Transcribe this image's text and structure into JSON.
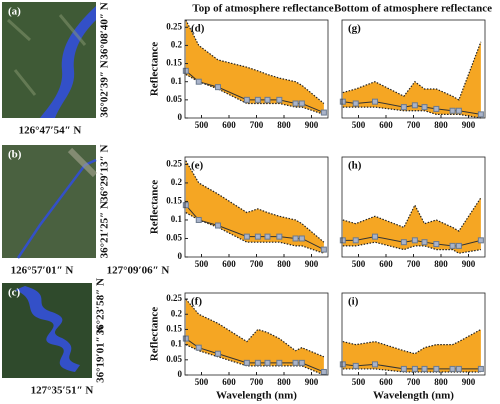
{
  "columns": [
    "Top of atmosphere reflectance",
    "Bottom of atmosphere reflectance"
  ],
  "images": [
    {
      "label": "(a)",
      "right": [
        "36°08′40″ N",
        "36°02′39″ N"
      ],
      "bottom": [
        "126°47′54″ N"
      ]
    },
    {
      "label": "(b)",
      "right": [
        "36°29′13″ N",
        "36°21′25″ N"
      ],
      "bottom": [
        "126°57′01″ N",
        "127°09′06″ N"
      ]
    },
    {
      "label": "(c)",
      "right": [
        "36°23′58″ N",
        "36°19′01″ N"
      ],
      "bottom": [
        "127°35′51″ N"
      ]
    }
  ],
  "chart_data": [
    {
      "type": "range",
      "label": "(d)",
      "ylabel": "Reflectance",
      "x": [
        443,
        490,
        560,
        665,
        705,
        740,
        783,
        842,
        865,
        945
      ],
      "upper": [
        0.27,
        0.2,
        0.16,
        0.14,
        0.13,
        0.12,
        0.11,
        0.1,
        0.09,
        0.04
      ],
      "lower": [
        0.12,
        0.1,
        0.08,
        0.04,
        0.04,
        0.04,
        0.04,
        0.03,
        0.03,
        0.01
      ],
      "values": [
        0.13,
        0.1,
        0.085,
        0.05,
        0.05,
        0.05,
        0.05,
        0.04,
        0.04,
        0.015
      ],
      "fill_color": "#f5a623",
      "color": "#6b7a8f",
      "xlim": [
        440,
        960
      ],
      "xticks": [
        500,
        600,
        700,
        800,
        900
      ],
      "ylim": [
        0,
        0.27
      ],
      "yticks": [
        0,
        0.05,
        0.1,
        0.15,
        0.2,
        0.25
      ]
    },
    {
      "type": "range",
      "label": "(g)",
      "x": [
        443,
        490,
        560,
        665,
        705,
        740,
        783,
        842,
        865,
        945
      ],
      "upper": [
        0.07,
        0.08,
        0.1,
        0.06,
        0.1,
        0.08,
        0.08,
        0.06,
        0.05,
        0.21
      ],
      "lower": [
        0.03,
        0.03,
        0.03,
        0.02,
        0.02,
        0.02,
        0.01,
        0.01,
        0.01,
        0.0
      ],
      "values": [
        0.045,
        0.04,
        0.045,
        0.03,
        0.035,
        0.03,
        0.025,
        0.02,
        0.02,
        0.01
      ],
      "fill_color": "#f5a623",
      "color": "#6b7a8f",
      "xlim": [
        440,
        960
      ],
      "xticks": [
        500,
        600,
        700,
        800,
        900
      ],
      "ylim": [
        0,
        0.27
      ]
    },
    {
      "type": "range",
      "label": "(e)",
      "ylabel": "Reflectance",
      "x": [
        443,
        490,
        560,
        665,
        705,
        740,
        783,
        842,
        865,
        945
      ],
      "upper": [
        0.26,
        0.2,
        0.17,
        0.12,
        0.13,
        0.12,
        0.11,
        0.1,
        0.09,
        0.04
      ],
      "lower": [
        0.12,
        0.1,
        0.08,
        0.04,
        0.04,
        0.04,
        0.04,
        0.03,
        0.03,
        0.01
      ],
      "values": [
        0.14,
        0.1,
        0.085,
        0.055,
        0.055,
        0.055,
        0.055,
        0.05,
        0.05,
        0.02
      ],
      "fill_color": "#f5a623",
      "color": "#6b7a8f",
      "xlim": [
        440,
        960
      ],
      "xticks": [
        500,
        600,
        700,
        800,
        900
      ],
      "ylim": [
        0,
        0.27
      ],
      "yticks": [
        0,
        0.05,
        0.1,
        0.15,
        0.2,
        0.25
      ]
    },
    {
      "type": "range",
      "label": "(h)",
      "x": [
        443,
        490,
        560,
        665,
        705,
        740,
        783,
        842,
        865,
        945
      ],
      "upper": [
        0.1,
        0.09,
        0.11,
        0.08,
        0.14,
        0.09,
        0.1,
        0.08,
        0.07,
        0.16
      ],
      "lower": [
        0.03,
        0.03,
        0.04,
        0.02,
        0.03,
        0.03,
        0.02,
        0.02,
        0.01,
        0.02
      ],
      "values": [
        0.045,
        0.045,
        0.055,
        0.04,
        0.045,
        0.04,
        0.035,
        0.03,
        0.03,
        0.045
      ],
      "fill_color": "#f5a623",
      "color": "#6b7a8f",
      "xlim": [
        440,
        960
      ],
      "xticks": [
        500,
        600,
        700,
        800,
        900
      ],
      "ylim": [
        0,
        0.27
      ]
    },
    {
      "type": "range",
      "label": "(f)",
      "ylabel": "Reflectance",
      "xlabel": "Wavelength (nm)",
      "x": [
        443,
        490,
        560,
        665,
        705,
        740,
        783,
        842,
        865,
        945
      ],
      "upper": [
        0.25,
        0.2,
        0.17,
        0.11,
        0.15,
        0.14,
        0.12,
        0.08,
        0.09,
        0.06
      ],
      "lower": [
        0.1,
        0.08,
        0.06,
        0.03,
        0.03,
        0.03,
        0.03,
        0.03,
        0.03,
        0.0
      ],
      "values": [
        0.12,
        0.09,
        0.07,
        0.04,
        0.04,
        0.04,
        0.04,
        0.04,
        0.04,
        0.01
      ],
      "fill_color": "#f5a623",
      "color": "#6b7a8f",
      "xlim": [
        440,
        960
      ],
      "xticks": [
        500,
        600,
        700,
        800,
        900
      ],
      "ylim": [
        0,
        0.27
      ],
      "yticks": [
        0,
        0.05,
        0.1,
        0.15,
        0.2,
        0.25
      ]
    },
    {
      "type": "range",
      "label": "(i)",
      "xlabel": "Wavelength (nm)",
      "x": [
        443,
        490,
        560,
        665,
        705,
        740,
        783,
        842,
        865,
        945
      ],
      "upper": [
        0.11,
        0.1,
        0.11,
        0.08,
        0.07,
        0.09,
        0.1,
        0.1,
        0.11,
        0.15
      ],
      "lower": [
        0.02,
        0.02,
        0.02,
        0.01,
        0.01,
        0.01,
        0.01,
        0.01,
        0.01,
        0.01
      ],
      "values": [
        0.035,
        0.03,
        0.035,
        0.02,
        0.02,
        0.02,
        0.02,
        0.02,
        0.02,
        0.02
      ],
      "fill_color": "#f5a623",
      "color": "#6b7a8f",
      "xlim": [
        440,
        960
      ],
      "xticks": [
        500,
        600,
        700,
        800,
        900
      ],
      "ylim": [
        0,
        0.27
      ]
    }
  ]
}
